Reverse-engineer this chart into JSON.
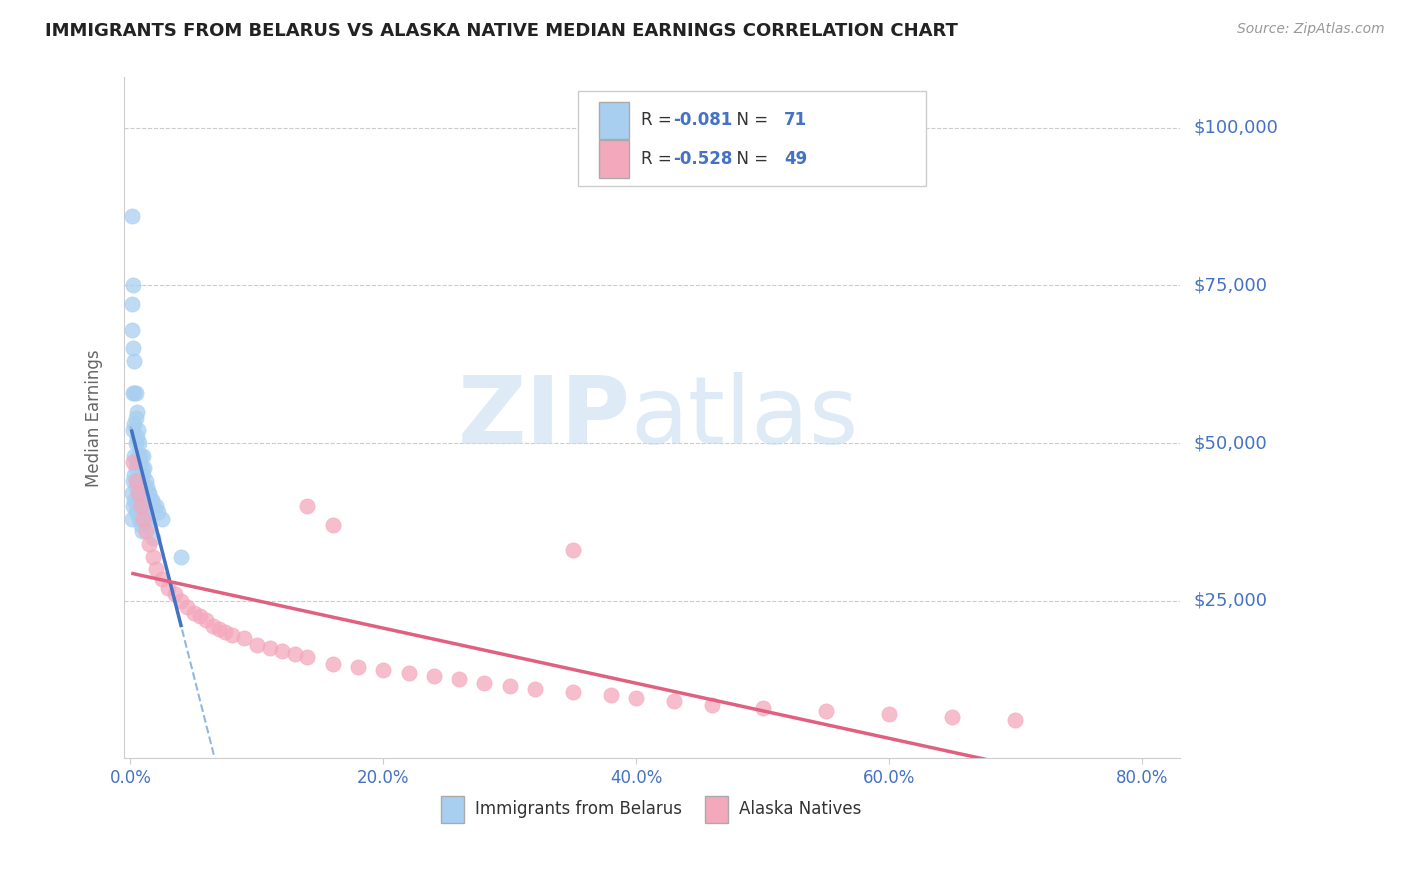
{
  "title": "IMMIGRANTS FROM BELARUS VS ALASKA NATIVE MEDIAN EARNINGS CORRELATION CHART",
  "source": "Source: ZipAtlas.com",
  "ylabel": "Median Earnings",
  "y_tick_labels": [
    "$25,000",
    "$50,000",
    "$75,000",
    "$100,000"
  ],
  "y_tick_values": [
    25000,
    50000,
    75000,
    100000
  ],
  "x_tick_labels": [
    "0.0%",
    "20.0%",
    "40.0%",
    "60.0%",
    "80.0%"
  ],
  "x_tick_values": [
    0.0,
    0.2,
    0.4,
    0.6,
    0.8
  ],
  "xlim": [
    -0.005,
    0.83
  ],
  "ylim": [
    0,
    108000
  ],
  "legend_label1": "Immigrants from Belarus",
  "legend_label2": "Alaska Natives",
  "blue_color": "#A8CFF0",
  "pink_color": "#F4A8BC",
  "trend_blue_solid_color": "#4472C4",
  "trend_pink_color": "#E06080",
  "trend_blue_dashed_color": "#90B8E0",
  "title_color": "#222222",
  "axis_label_color": "#4472C4",
  "R1": -0.081,
  "N1": 71,
  "R2": -0.528,
  "N2": 49,
  "blue_x": [
    0.001,
    0.001,
    0.001,
    0.002,
    0.002,
    0.002,
    0.002,
    0.003,
    0.003,
    0.003,
    0.003,
    0.004,
    0.004,
    0.004,
    0.004,
    0.005,
    0.005,
    0.005,
    0.006,
    0.006,
    0.006,
    0.007,
    0.007,
    0.007,
    0.008,
    0.008,
    0.008,
    0.009,
    0.009,
    0.01,
    0.01,
    0.01,
    0.011,
    0.011,
    0.012,
    0.012,
    0.013,
    0.014,
    0.015,
    0.016,
    0.017,
    0.018,
    0.02,
    0.022,
    0.025,
    0.001,
    0.001,
    0.002,
    0.002,
    0.003,
    0.003,
    0.004,
    0.004,
    0.005,
    0.005,
    0.006,
    0.006,
    0.007,
    0.007,
    0.008,
    0.008,
    0.009,
    0.009,
    0.01,
    0.01,
    0.011,
    0.012,
    0.013,
    0.015,
    0.018,
    0.04
  ],
  "blue_y": [
    86000,
    72000,
    68000,
    75000,
    65000,
    58000,
    52000,
    63000,
    58000,
    53000,
    48000,
    58000,
    54000,
    50000,
    46000,
    55000,
    51000,
    47000,
    52000,
    48000,
    44000,
    50000,
    47000,
    43000,
    48000,
    45000,
    41000,
    46000,
    43000,
    48000,
    45000,
    42000,
    46000,
    43000,
    44000,
    41000,
    43000,
    42000,
    42000,
    41000,
    41000,
    40000,
    40000,
    39000,
    38000,
    42000,
    38000,
    44000,
    40000,
    45000,
    41000,
    43000,
    39000,
    44000,
    40000,
    43000,
    39000,
    42000,
    38000,
    41000,
    37000,
    40000,
    36000,
    42000,
    38000,
    40000,
    39000,
    38000,
    37000,
    35000,
    32000
  ],
  "pink_x": [
    0.002,
    0.004,
    0.006,
    0.008,
    0.01,
    0.012,
    0.015,
    0.018,
    0.02,
    0.025,
    0.03,
    0.035,
    0.04,
    0.045,
    0.05,
    0.055,
    0.06,
    0.065,
    0.07,
    0.075,
    0.08,
    0.09,
    0.1,
    0.11,
    0.12,
    0.13,
    0.14,
    0.16,
    0.18,
    0.2,
    0.22,
    0.24,
    0.26,
    0.28,
    0.3,
    0.32,
    0.35,
    0.38,
    0.4,
    0.43,
    0.46,
    0.5,
    0.55,
    0.6,
    0.65,
    0.7,
    0.14,
    0.16,
    0.35
  ],
  "pink_y": [
    47000,
    44000,
    42000,
    40000,
    38000,
    36000,
    34000,
    32000,
    30000,
    28500,
    27000,
    26000,
    25000,
    24000,
    23000,
    22500,
    22000,
    21000,
    20500,
    20000,
    19500,
    19000,
    18000,
    17500,
    17000,
    16500,
    16000,
    15000,
    14500,
    14000,
    13500,
    13000,
    12500,
    12000,
    11500,
    11000,
    10500,
    10000,
    9500,
    9000,
    8500,
    8000,
    7500,
    7000,
    6500,
    6000,
    40000,
    37000,
    33000
  ]
}
